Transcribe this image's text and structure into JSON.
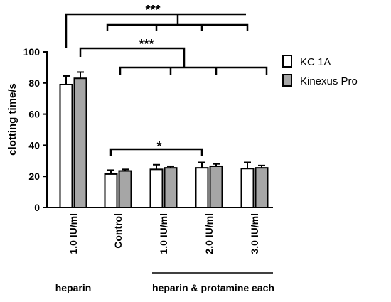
{
  "chart_data": {
    "type": "bar",
    "ylabel": "clotting time/s",
    "ylim": [
      0,
      100
    ],
    "yticks": [
      0,
      20,
      40,
      60,
      80,
      100
    ],
    "categories": [
      "1.0 IU/ml",
      "Control",
      "1.0 IU/ml",
      "2.0 IU/ml",
      "3.0 IU/ml"
    ],
    "series": [
      {
        "name": "KC 1A",
        "color": "#ffffff",
        "values": [
          79,
          21.5,
          24.5,
          25.5,
          25
        ],
        "errors": [
          5.5,
          2.5,
          3,
          3.5,
          4
        ]
      },
      {
        "name": "Kinexus Pro",
        "color": "#a6a6a6",
        "values": [
          83,
          23.5,
          25.5,
          26.5,
          25.5
        ],
        "errors": [
          4,
          1,
          1,
          1.5,
          1.5
        ]
      }
    ],
    "group_labels": [
      {
        "text": "heparin",
        "categories": [
          0
        ]
      },
      {
        "text": "heparin & protamine each",
        "categories": [
          2,
          3,
          4
        ]
      }
    ],
    "significance": [
      {
        "label": "***",
        "from_category": 0,
        "to_categories": [
          1,
          2,
          3,
          4
        ],
        "series": "KC 1A"
      },
      {
        "label": "***",
        "from_category": 0,
        "to_categories": [
          1,
          2,
          3,
          4
        ],
        "series": "Kinexus Pro"
      },
      {
        "label": "*",
        "from_category": 1,
        "to_categories": [
          3
        ]
      }
    ],
    "legend_position": "right"
  }
}
